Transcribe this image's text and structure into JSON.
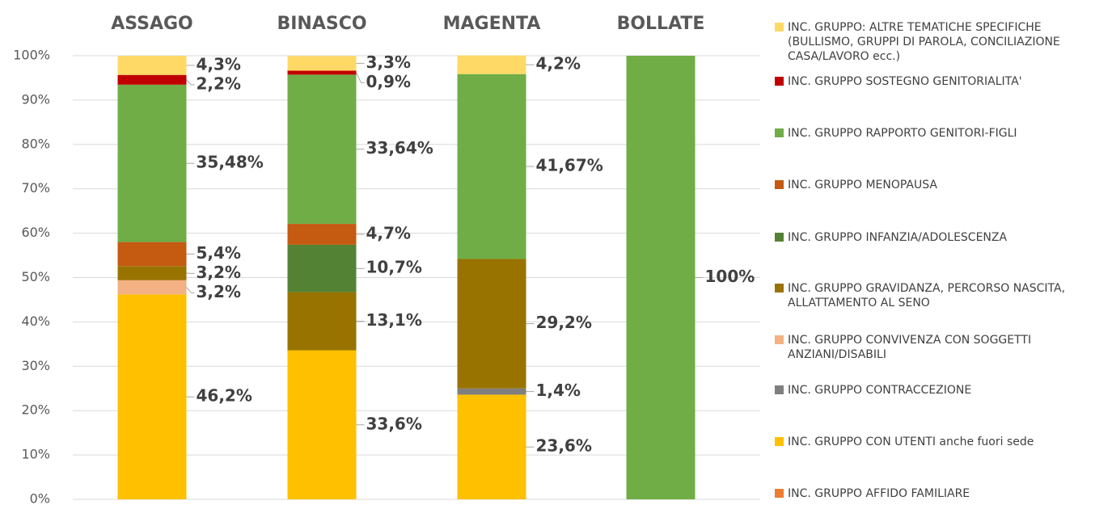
{
  "chart_data": {
    "type": "bar",
    "stacked": true,
    "categories": [
      "ASSAGO",
      "BINASCO",
      "MAGENTA",
      "BOLLATE"
    ],
    "ylim": [
      0,
      100
    ],
    "yticks": [
      {
        "value": 0,
        "label": "0%"
      },
      {
        "value": 10,
        "label": "10%"
      },
      {
        "value": 20,
        "label": "20%"
      },
      {
        "value": 30,
        "label": "30%"
      },
      {
        "value": 40,
        "label": "40%"
      },
      {
        "value": 50,
        "label": "50%"
      },
      {
        "value": 60,
        "label": "60%"
      },
      {
        "value": 70,
        "label": "70%"
      },
      {
        "value": 80,
        "label": "80%"
      },
      {
        "value": 90,
        "label": "90%"
      },
      {
        "value": 100,
        "label": "100%"
      }
    ],
    "grid": true,
    "legend": "right",
    "series": [
      {
        "name": "INC. GRUPPO AFFIDO FAMILIARE",
        "color": "#ED7D31",
        "values": [
          0,
          0,
          0,
          0
        ],
        "value_labels": [
          null,
          null,
          null,
          null
        ]
      },
      {
        "name": "INC. GRUPPO CON UTENTI anche fuori sede",
        "color": "#FFC000",
        "values": [
          46.2,
          33.6,
          23.6,
          0
        ],
        "value_labels": [
          "46,2%",
          "33,6%",
          "23,6%",
          null
        ]
      },
      {
        "name": "INC. GRUPPO CONTRACCEZIONE",
        "color": "#7F7F7F",
        "values": [
          0,
          0,
          1.4,
          0
        ],
        "value_labels": [
          null,
          null,
          "1,4%",
          null
        ]
      },
      {
        "name": "INC. GRUPPO CONVIVENZA CON SOGGETTI ANZIANI/DISABILI",
        "color": "#F4B183",
        "values": [
          3.2,
          0,
          0,
          0
        ],
        "value_labels": [
          "3,2%",
          null,
          null,
          null
        ]
      },
      {
        "name": "INC. GRUPPO GRAVIDANZA, PERCORSO NASCITA, ALLATTAMENTO AL SENO",
        "color": "#997300",
        "values": [
          3.2,
          13.1,
          29.2,
          0
        ],
        "value_labels": [
          "3,2%",
          "13,1%",
          "29,2%",
          null
        ]
      },
      {
        "name": "INC. GRUPPO INFANZIA/ADOLESCENZA",
        "color": "#548235",
        "values": [
          0,
          10.7,
          0,
          0
        ],
        "value_labels": [
          null,
          "10,7%",
          null,
          null
        ]
      },
      {
        "name": "INC. GRUPPO MENOPAUSA",
        "color": "#C55A11",
        "values": [
          5.4,
          4.7,
          0,
          0
        ],
        "value_labels": [
          "5,4%",
          "4,7%",
          null,
          null
        ]
      },
      {
        "name": "INC. GRUPPO RAPPORTO GENITORI-FIGLI",
        "color": "#70AD47",
        "values": [
          35.48,
          33.64,
          41.67,
          100
        ],
        "value_labels": [
          "35,48%",
          "33,64%",
          "41,67%",
          "100%"
        ]
      },
      {
        "name": "INC. GRUPPO SOSTEGNO GENITORIALITA'",
        "color": "#C00000",
        "values": [
          2.2,
          0.9,
          0,
          0
        ],
        "value_labels": [
          "2,2%",
          "0,9%",
          null,
          null
        ]
      },
      {
        "name": "INC. GRUPPO: ALTRE TEMATICHE SPECIFICHE (BULLISMO, GRUPPI DI PAROLA, CONCILIAZIONE CASA/LAVORO ecc.)",
        "color": "#FFD966",
        "values": [
          4.3,
          3.3,
          4.2,
          0
        ],
        "value_labels": [
          "4,3%",
          "3,3%",
          "4,2%",
          null
        ]
      }
    ]
  }
}
